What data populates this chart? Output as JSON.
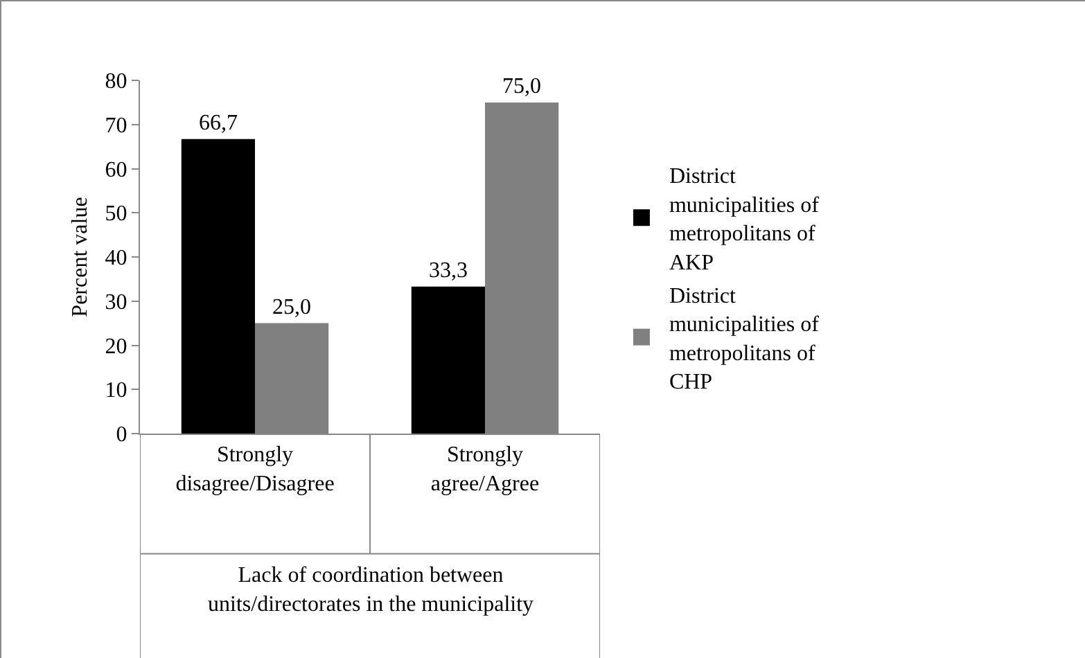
{
  "chart_data": {
    "type": "bar",
    "xlabel": "Lack of coordination between units/directorates in the municipality",
    "ylabel": "Percent value",
    "categories": [
      "Strongly disagree/Disagree",
      "Strongly agree/Agree"
    ],
    "series": [
      {
        "name": "District municipalities of metropolitans of AKP",
        "color": "#000000",
        "values": [
          66.7,
          33.3
        ],
        "value_labels": [
          "66,7",
          "33,3"
        ]
      },
      {
        "name": "District municipalities of metropolitans of CHP",
        "color": "#808080",
        "values": [
          25.0,
          75.0
        ],
        "value_labels": [
          "25,0",
          "75,0"
        ]
      }
    ],
    "ylim": [
      0,
      80
    ],
    "yticks": [
      0,
      10,
      20,
      30,
      40,
      50,
      60,
      70,
      80
    ],
    "grid": false,
    "legend": "right"
  }
}
